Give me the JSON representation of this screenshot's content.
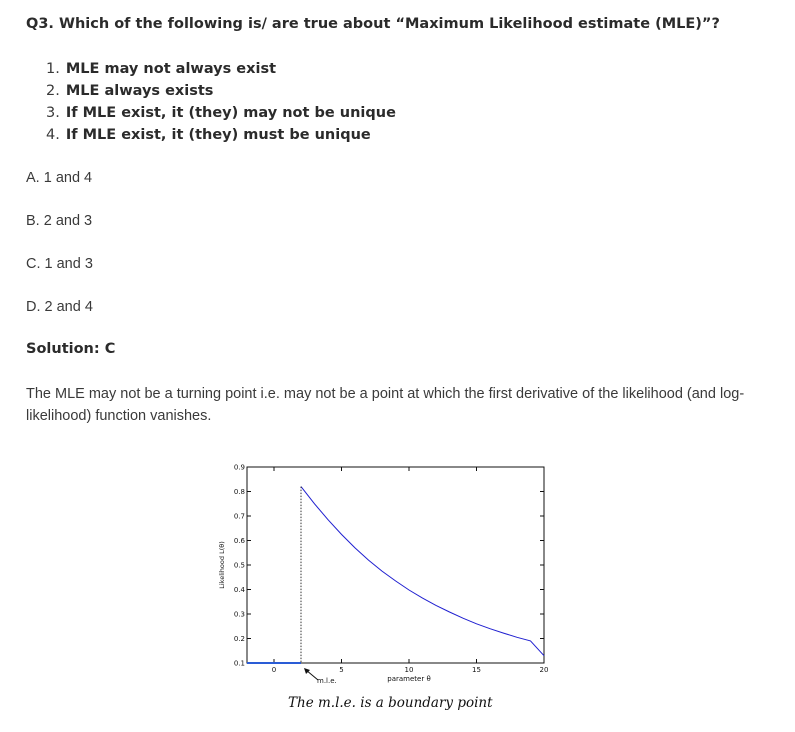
{
  "question": "Q3. Which of the following is/ are true about  “Maximum Likelihood estimate (MLE)”?",
  "statements": [
    {
      "num": "1.",
      "text": "MLE may not always exist"
    },
    {
      "num": "2.",
      "text": "MLE always exists"
    },
    {
      "num": "3.",
      "text": "If MLE exist, it (they) may not be unique"
    },
    {
      "num": "4.",
      "text": "If MLE exist, it (they) must be unique"
    }
  ],
  "options": [
    "A. 1 and 4",
    "B. 2 and 3",
    "C. 1 and 3",
    "D. 2 and 4"
  ],
  "solution": "Solution: C",
  "explanation": "The MLE may not be a turning point i.e. may not be a point at which the first derivative of the likelihood (and log-likelihood) function vanishes.",
  "chart_data": {
    "type": "line",
    "ylabel": "Likelihood L(θ)",
    "xlabel": "parameter θ",
    "xlim": [
      -2,
      20
    ],
    "ylim": [
      0.1,
      0.9
    ],
    "xticks": [
      0,
      5,
      10,
      15,
      20
    ],
    "yticks": [
      0.1,
      0.2,
      0.3,
      0.4,
      0.5,
      0.6,
      0.7,
      0.8,
      0.9
    ],
    "annotation": "m.l.e.",
    "mle_x": 2,
    "series": [
      {
        "color": "#2a5cd6",
        "points": [
          [
            -2,
            0.1
          ],
          [
            2,
            0.1
          ]
        ]
      },
      {
        "color": "#1f1fd0",
        "points": [
          [
            2,
            0.82
          ],
          [
            3,
            0.75
          ],
          [
            4,
            0.685
          ],
          [
            5,
            0.625
          ],
          [
            6,
            0.57
          ],
          [
            7,
            0.52
          ],
          [
            8,
            0.475
          ],
          [
            9,
            0.435
          ],
          [
            10,
            0.398
          ],
          [
            11,
            0.365
          ],
          [
            12,
            0.335
          ],
          [
            13,
            0.308
          ],
          [
            14,
            0.283
          ],
          [
            15,
            0.26
          ],
          [
            16,
            0.24
          ],
          [
            17,
            0.222
          ],
          [
            18,
            0.205
          ],
          [
            19,
            0.19
          ],
          [
            20,
            0.13
          ]
        ]
      }
    ]
  },
  "caption": "The m.l.e. is a boundary point"
}
